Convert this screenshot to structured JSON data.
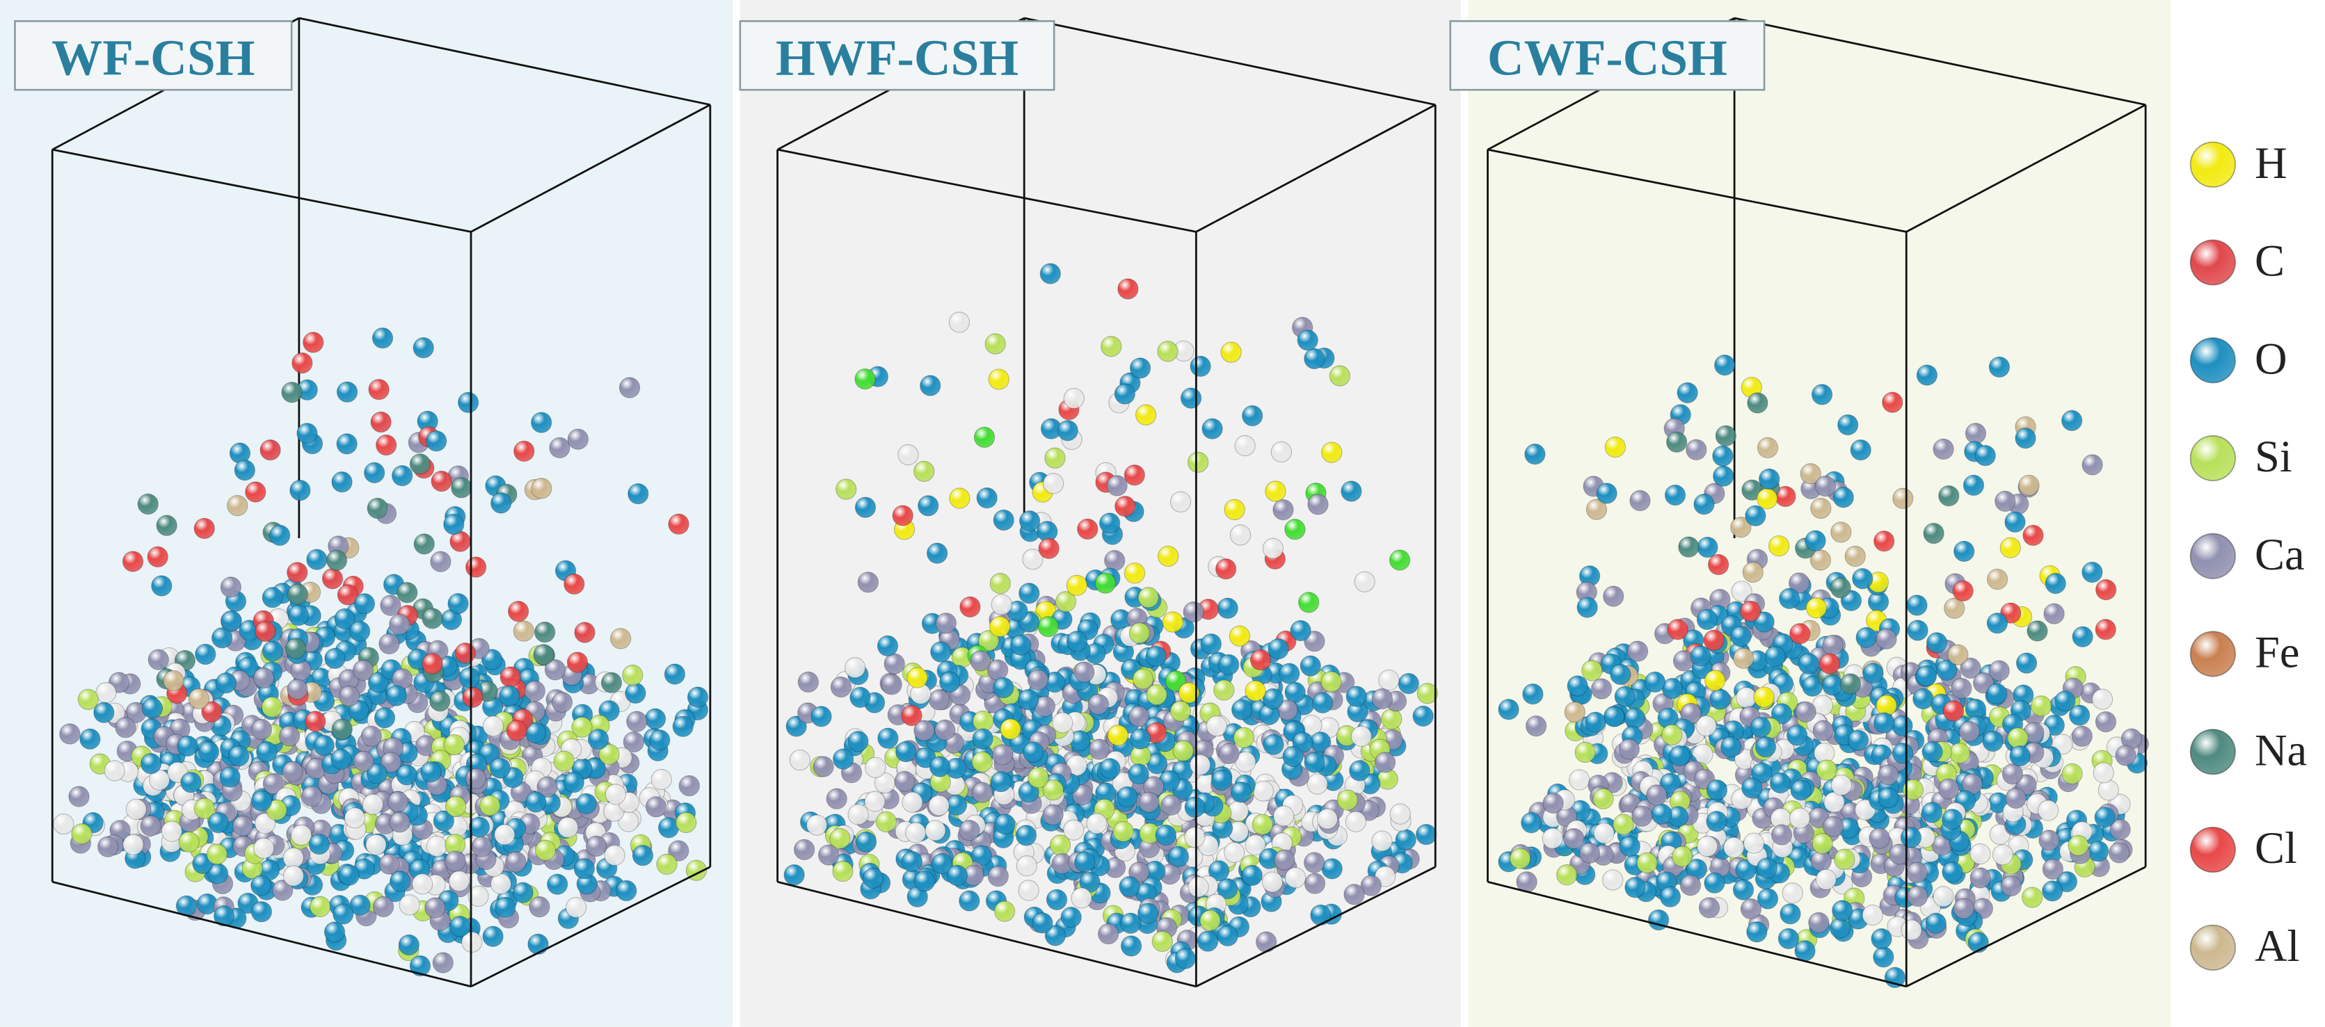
{
  "panels": [
    {
      "title": "WF-CSH"
    },
    {
      "title": "HWF-CSH"
    },
    {
      "title": "CWF-CSH"
    }
  ],
  "legend": [
    {
      "label": "H",
      "color": "#f2ea10"
    },
    {
      "label": "C",
      "color": "#e0484c"
    },
    {
      "label": "O",
      "color": "#1e8fc0"
    },
    {
      "label": "Si",
      "color": "#b8e05a"
    },
    {
      "label": "Ca",
      "color": "#9090b0"
    },
    {
      "label": "Fe",
      "color": "#c98050"
    },
    {
      "label": "Na",
      "color": "#4e8a80"
    },
    {
      "label": "Cl",
      "color": "#e84848"
    },
    {
      "label": "Al",
      "color": "#cdb890"
    }
  ]
}
